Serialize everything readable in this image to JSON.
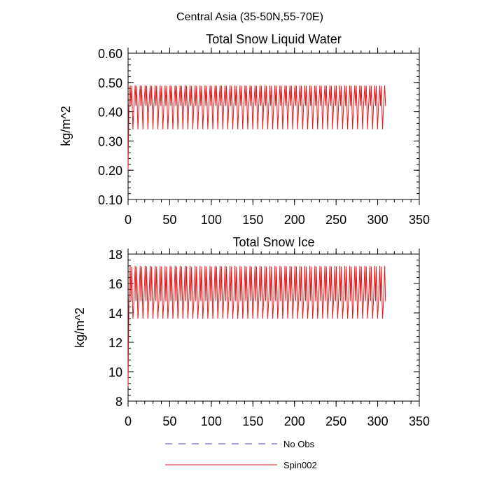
{
  "page_title": "Central Asia (35-50N,55-70E)",
  "colors": {
    "obs": "#4a4ad6",
    "spin": "#e41a1c",
    "axis": "#000000"
  },
  "legend": {
    "obs_label": "No Obs",
    "spin_label": "Spin002"
  },
  "chart_data": [
    {
      "type": "line",
      "title": "Total Snow Liquid Water",
      "ylabel": "kg/m^2",
      "xlim": [
        0,
        350
      ],
      "ylim": [
        0.1,
        0.6
      ],
      "xticks": [
        0,
        50,
        100,
        150,
        200,
        250,
        300,
        350
      ],
      "yticks": [
        0.1,
        0.2,
        0.3,
        0.4,
        0.5,
        0.6
      ],
      "ytick_labels": [
        "0.10",
        "0.20",
        "0.30",
        "0.40",
        "0.50",
        "0.60"
      ],
      "xtick_labels": [
        "0",
        "50",
        "100",
        "150",
        "200",
        "250",
        "300",
        "350"
      ],
      "series": [
        {
          "name": "Spin002",
          "x_start": 0,
          "x_end": 310,
          "period": 6,
          "initial": 0.2,
          "seasonal_max": 0.49,
          "seasonal_min": 0.34,
          "mid": 0.42
        }
      ]
    },
    {
      "type": "line",
      "title": "Total Snow Ice",
      "ylabel": "kg/m^2",
      "xlim": [
        0,
        350
      ],
      "ylim": [
        8,
        18
      ],
      "xticks": [
        0,
        50,
        100,
        150,
        200,
        250,
        300,
        350
      ],
      "yticks": [
        8,
        10,
        12,
        14,
        16,
        18
      ],
      "ytick_labels": [
        "8",
        "10",
        "12",
        "14",
        "16",
        "18"
      ],
      "xtick_labels": [
        "0",
        "50",
        "100",
        "150",
        "200",
        "250",
        "300",
        "350"
      ],
      "series": [
        {
          "name": "Spin002",
          "x_start": 0,
          "x_end": 310,
          "period": 6,
          "initial": 9.0,
          "seasonal_max": 17.2,
          "seasonal_min": 13.6,
          "mid": 14.8
        }
      ]
    }
  ]
}
